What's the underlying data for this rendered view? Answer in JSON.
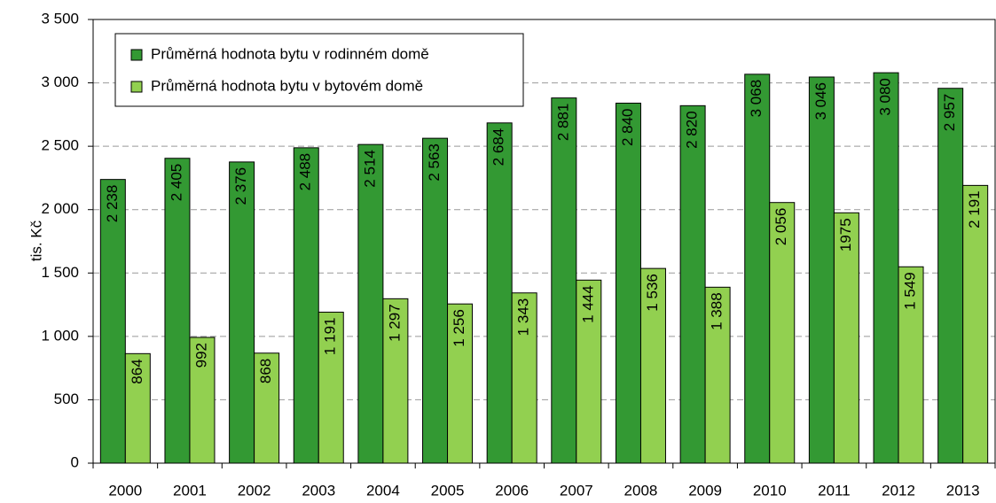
{
  "chart_data": {
    "type": "bar",
    "y_label": "tis. Kč",
    "categories": [
      "2000",
      "2001",
      "2002",
      "2003",
      "2004",
      "2005",
      "2006",
      "2007",
      "2008",
      "2009",
      "2010",
      "2011",
      "2012",
      "2013"
    ],
    "series": [
      {
        "name": "Průměrná hodnota bytu v rodinném domě",
        "color": "#339933",
        "values": [
          2238,
          2405,
          2376,
          2488,
          2514,
          2563,
          2684,
          2881,
          2840,
          2820,
          3068,
          3046,
          3080,
          2957
        ],
        "value_labels": [
          "2 238",
          "2 405",
          "2 376",
          "2 488",
          "2 514",
          "2 563",
          "2 684",
          "2 881",
          "2 840",
          "2 820",
          "3 068",
          "3 046",
          "3 080",
          "2 957"
        ]
      },
      {
        "name": "Průměrná hodnota bytu v bytovém domě",
        "color": "#92d050",
        "values": [
          864,
          992,
          868,
          1191,
          1297,
          1256,
          1343,
          1444,
          1536,
          1388,
          2056,
          1975,
          1549,
          2191
        ],
        "value_labels": [
          "864",
          "992",
          "868",
          "1 191",
          "1 297",
          "1 256",
          "1 343",
          "1 444",
          "1 536",
          "1 388",
          "2 056",
          "1975",
          "1 549",
          "2 191"
        ]
      }
    ],
    "ylim": [
      0,
      3500
    ],
    "yticks": [
      0,
      500,
      {
        "value": 1000,
        "label": "1 000"
      },
      {
        "value": 1500,
        "label": "1 500"
      },
      {
        "value": 2000,
        "label": "2 000"
      },
      {
        "value": 2500,
        "label": "2 500"
      },
      {
        "value": 3000,
        "label": "3 000"
      },
      {
        "value": 3500,
        "label": "3 500"
      }
    ],
    "grid": true,
    "legend": "upper left"
  }
}
